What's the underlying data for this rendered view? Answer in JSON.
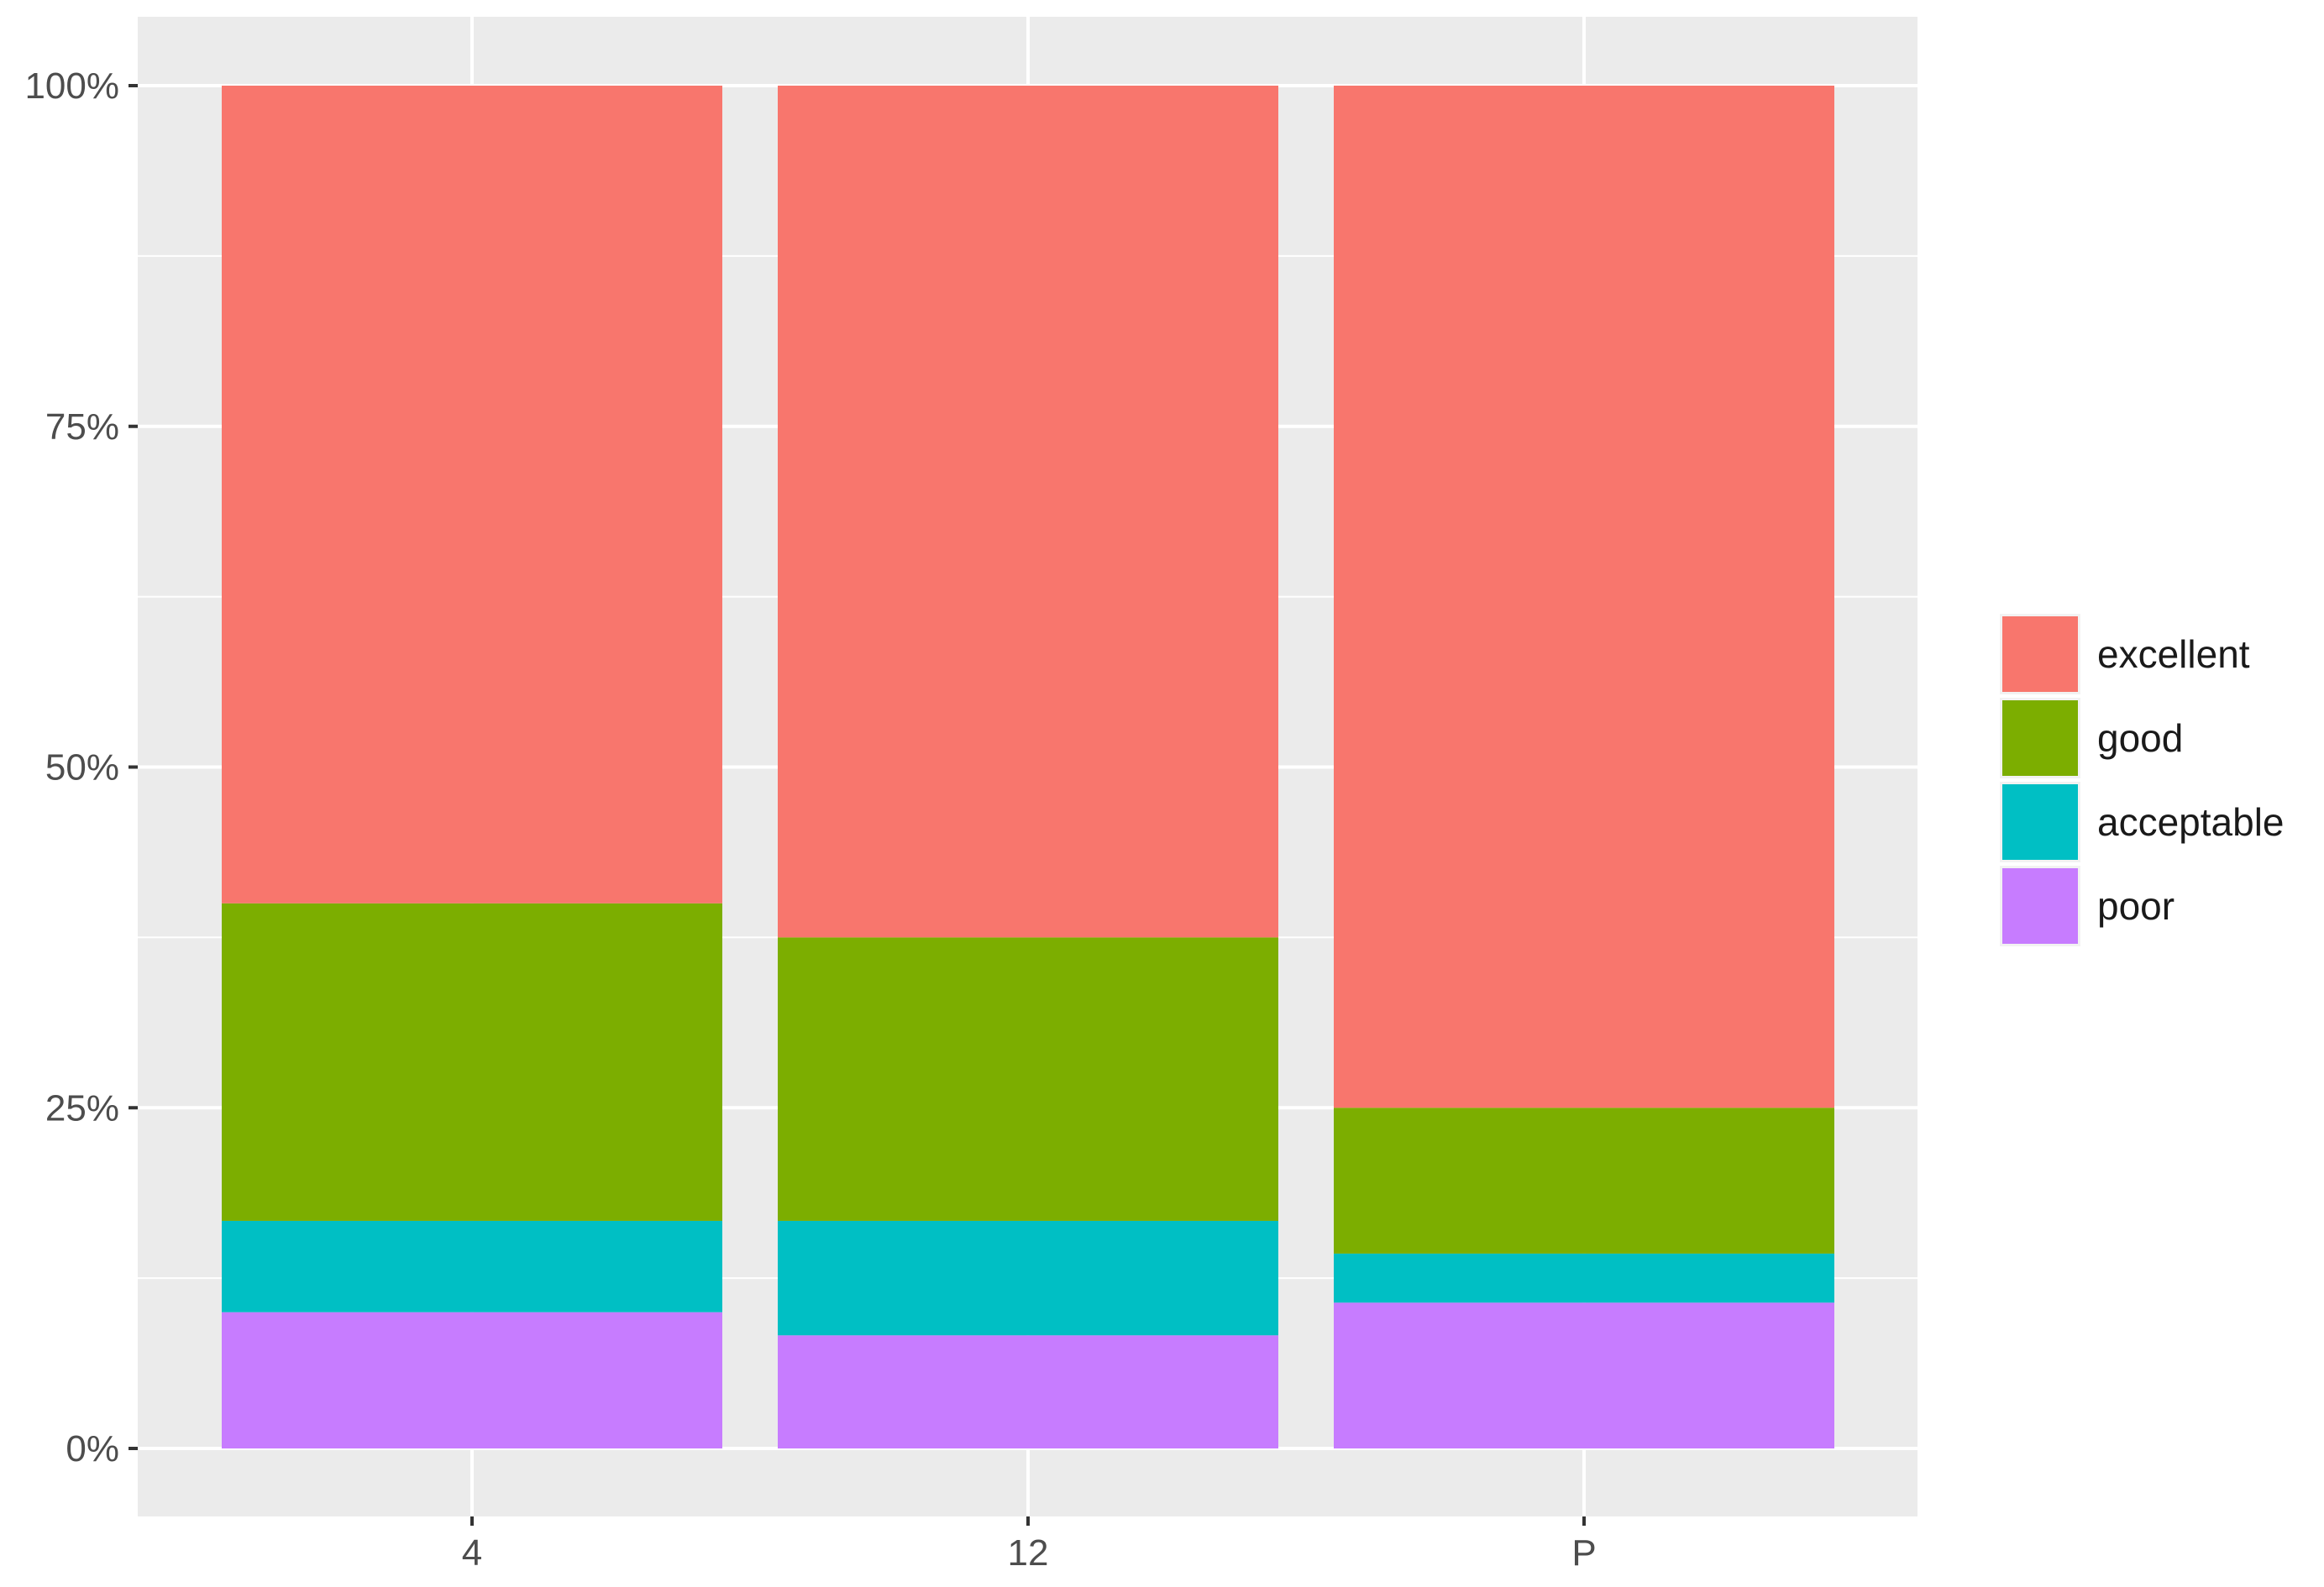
{
  "chart_data": {
    "type": "bar",
    "stacked": true,
    "percent": true,
    "title": "",
    "xlabel": "",
    "ylabel": "",
    "categories": [
      "4",
      "12",
      "P"
    ],
    "series": [
      {
        "name": "poor",
        "color": "#C77CFF",
        "values": [
          10,
          8.3,
          10.7
        ]
      },
      {
        "name": "acceptable",
        "color": "#00BFC4",
        "values": [
          6.7,
          8.4,
          3.6
        ]
      },
      {
        "name": "good",
        "color": "#7CAE00",
        "values": [
          23.3,
          20.8,
          10.7
        ]
      },
      {
        "name": "excellent",
        "color": "#F8766D",
        "values": [
          60,
          62.5,
          75
        ]
      }
    ],
    "ylim": [
      0,
      100
    ],
    "yticks": [
      0,
      25,
      50,
      75,
      100
    ],
    "ytick_labels": [
      "0%",
      "25%",
      "50%",
      "75%",
      "100%"
    ],
    "grid": true,
    "legend": {
      "position": "right",
      "order": [
        "excellent",
        "good",
        "acceptable",
        "poor"
      ]
    }
  }
}
